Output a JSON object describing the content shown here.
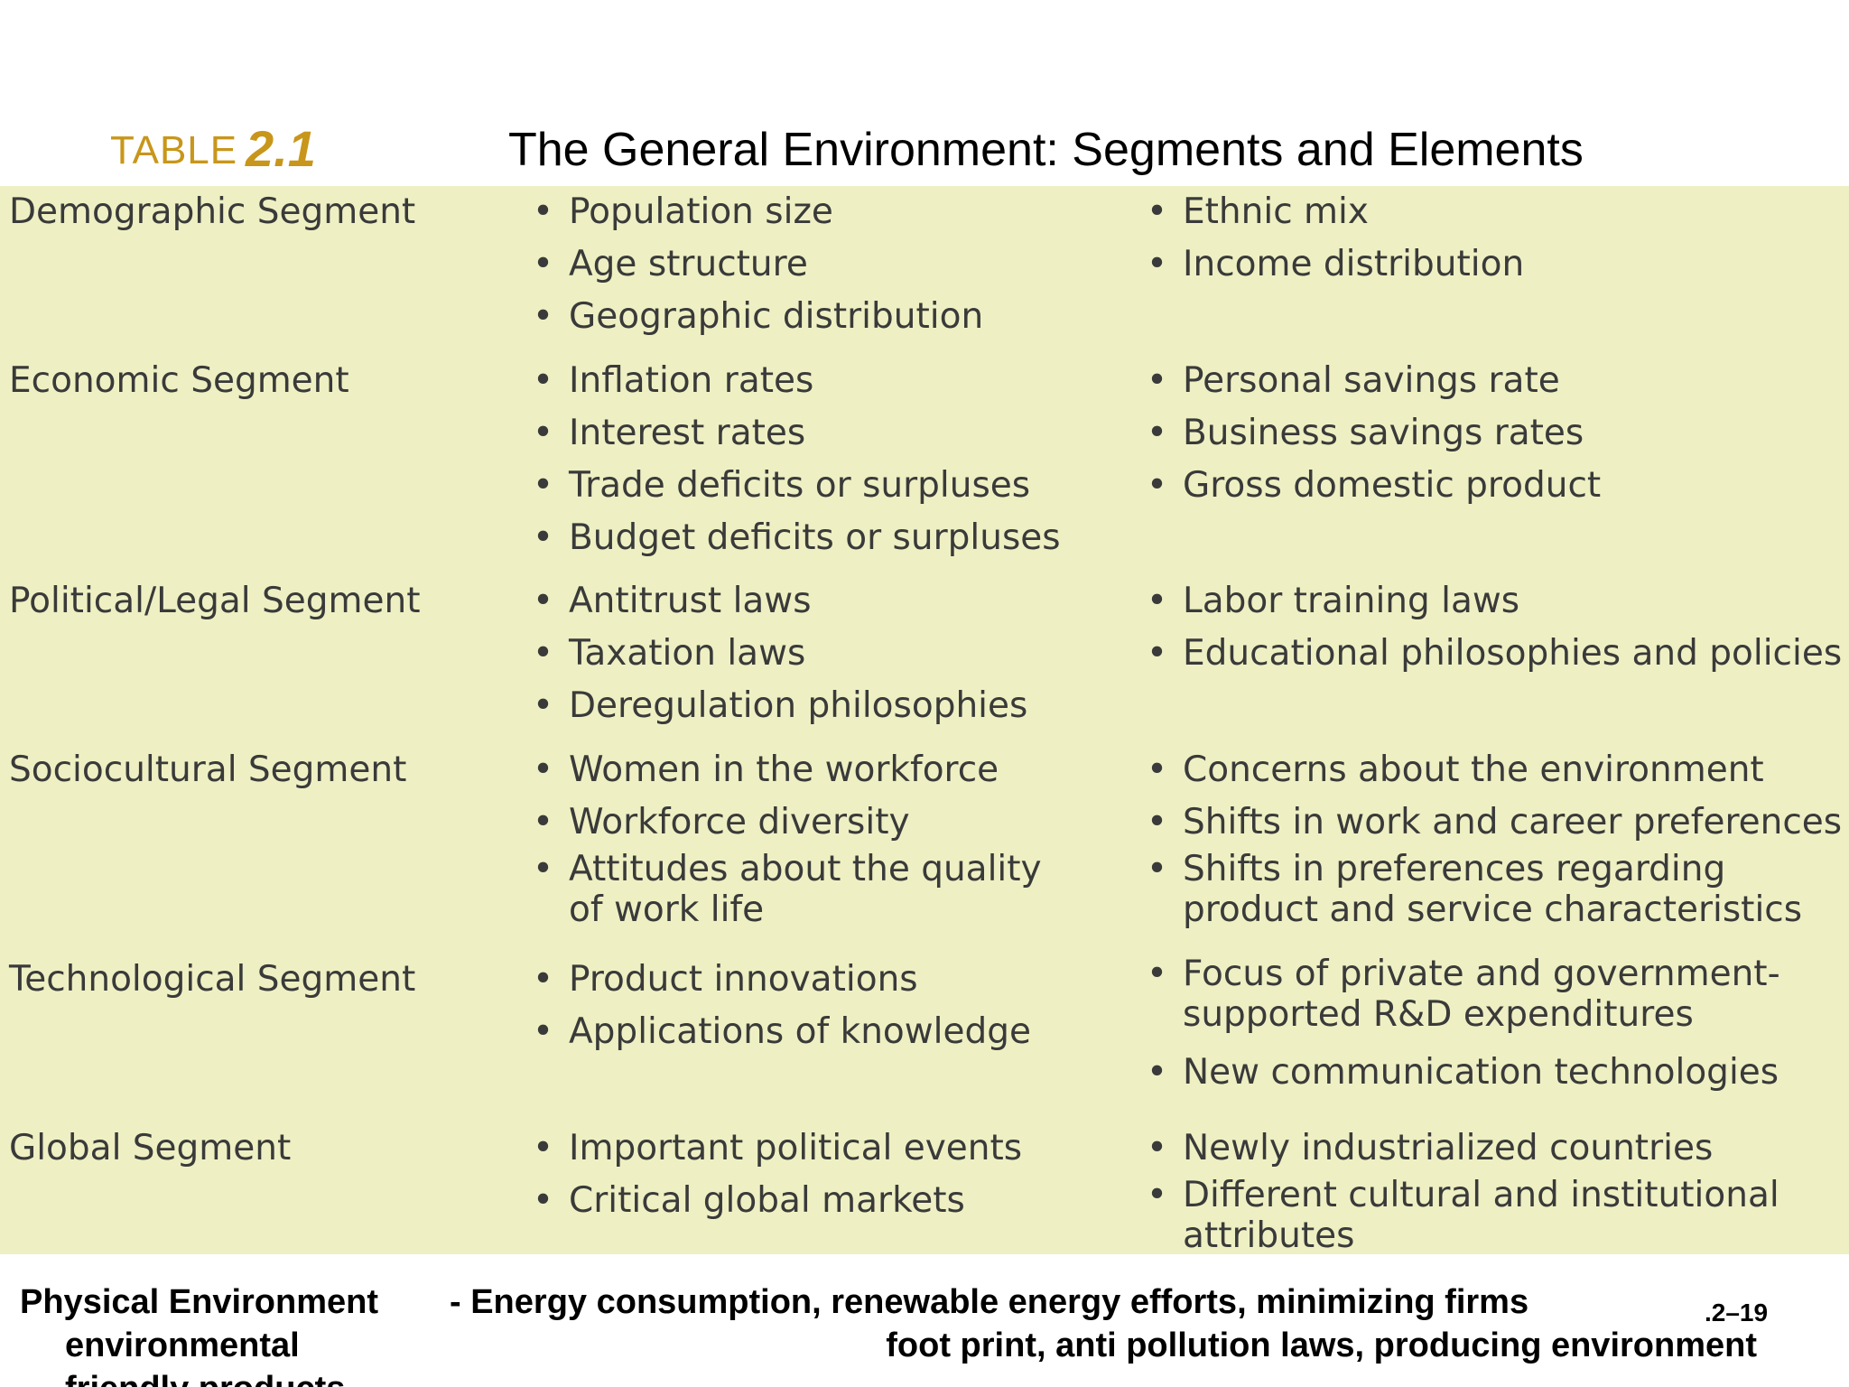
{
  "header": {
    "table_label": "TABLE",
    "table_number": "2.1",
    "title": "The General Environment: Segments and Elements"
  },
  "segments": [
    {
      "name": "Demographic Segment",
      "col_a": [
        "Population size",
        "Age structure",
        "Geographic distribution"
      ],
      "col_b": [
        "Ethnic mix",
        "Income distribution"
      ]
    },
    {
      "name": "Economic Segment",
      "col_a": [
        "Inflation rates",
        "Interest rates",
        "Trade deficits or surpluses",
        "Budget deficits or surpluses"
      ],
      "col_b": [
        "Personal savings rate",
        "Business savings rates",
        "Gross domestic product"
      ]
    },
    {
      "name": "Political/Legal Segment",
      "col_a": [
        "Antitrust laws",
        "Taxation laws",
        "Deregulation philosophies"
      ],
      "col_b": [
        "Labor training laws",
        "Educational philosophies and policies"
      ]
    },
    {
      "name": "Sociocultural Segment",
      "col_a": [
        "Women in the workforce",
        "Workforce diversity",
        "Attitudes about the quality\nof work life"
      ],
      "col_b": [
        "Concerns about the environment",
        "Shifts in work and career preferences",
        "Shifts in preferences regarding\n product and service characteristics"
      ]
    },
    {
      "name": "Technological Segment",
      "col_a": [
        "Product innovations",
        "Applications of knowledge"
      ],
      "col_b": [
        "Focus of private and government-\nsupported R&D expenditures",
        "New communication technologies"
      ]
    },
    {
      "name": "Global Segment",
      "col_a": [
        "Important political events",
        "Critical global markets"
      ],
      "col_b": [
        "Newly industrialized countries",
        "Different cultural and institutional\nattributes"
      ]
    }
  ],
  "bullet": "•",
  "footer": {
    "label_line1": "Physical Environment",
    "label_line2": "environmental\nfriendly products",
    "desc_line1": "- Energy consumption, renewable energy efforts, minimizing firms",
    "desc_line2": "foot print, anti pollution laws, producing environment",
    "page_number": ".2–19"
  },
  "colors": {
    "panel_bg": "#eef0c3",
    "accent": "#c8961a"
  }
}
